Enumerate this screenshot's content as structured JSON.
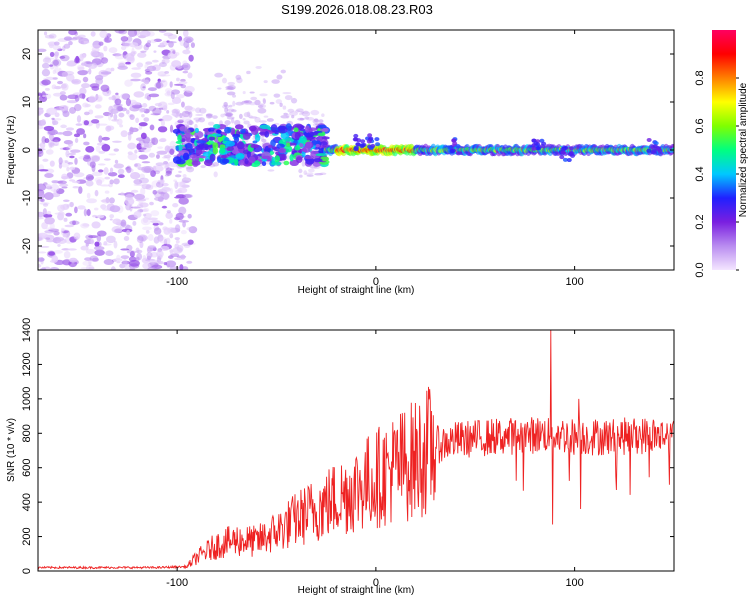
{
  "figure": {
    "title": "S199.2026.018.08.23.R03"
  },
  "chart_data": [
    {
      "type": "heatmap",
      "name": "spectrogram",
      "xlabel": "Height of straight line (km)",
      "ylabel": "Frequency (Hz)",
      "xlim": [
        -170,
        150
      ],
      "ylim": [
        -25,
        25
      ],
      "xticks": [
        -100,
        0,
        100
      ],
      "yticks": [
        -20,
        -10,
        0,
        10,
        20
      ],
      "colorbar": {
        "label": "Normalized spectral amplitude",
        "range": [
          0,
          1
        ],
        "ticks": [
          0.0,
          0.2,
          0.4,
          0.6,
          0.8
        ],
        "tick_labels": [
          "0.0",
          "0.2",
          "0.4",
          "0.6",
          "0.8"
        ],
        "colormap_stops": [
          "#f4e6ff",
          "#b98cf0",
          "#7a1fe0",
          "#2020ff",
          "#00c8ff",
          "#00ff80",
          "#80ff00",
          "#ffff00",
          "#ff8000",
          "#ff0000",
          "#ff0060"
        ]
      },
      "features": {
        "noise_region_x": [
          -170,
          -100
        ],
        "cluster_region_x": [
          -100,
          -25
        ],
        "carrier_region_x": [
          -25,
          150
        ],
        "carrier_frequency_hz": 0,
        "peak_amplitude_region_x": [
          -20,
          20
        ]
      }
    },
    {
      "type": "line",
      "name": "snr",
      "xlabel": "Height of straight line (km)",
      "ylabel": "SNR (10 * v/v)",
      "xlim": [
        -170,
        150
      ],
      "ylim": [
        0,
        1400
      ],
      "xticks": [
        -100,
        0,
        100
      ],
      "yticks": [
        0,
        200,
        400,
        600,
        800,
        1000,
        1200,
        1400
      ],
      "color": "#ee2222",
      "trend_x": [
        -170,
        -140,
        -110,
        -95,
        -90,
        -80,
        -70,
        -60,
        -50,
        -40,
        -30,
        -20,
        -10,
        0,
        10,
        20,
        30,
        40,
        60,
        80,
        88,
        100,
        120,
        140,
        150
      ],
      "trend_y": [
        20,
        20,
        20,
        25,
        80,
        150,
        180,
        170,
        230,
        300,
        360,
        420,
        480,
        540,
        600,
        650,
        730,
        760,
        780,
        790,
        800,
        780,
        780,
        790,
        780
      ],
      "spikes": [
        {
          "x": 88,
          "y": 1400
        },
        {
          "x": 89,
          "y": 270
        },
        {
          "x": 102,
          "y": 1000
        },
        {
          "x": 103,
          "y": 360
        }
      ]
    }
  ]
}
